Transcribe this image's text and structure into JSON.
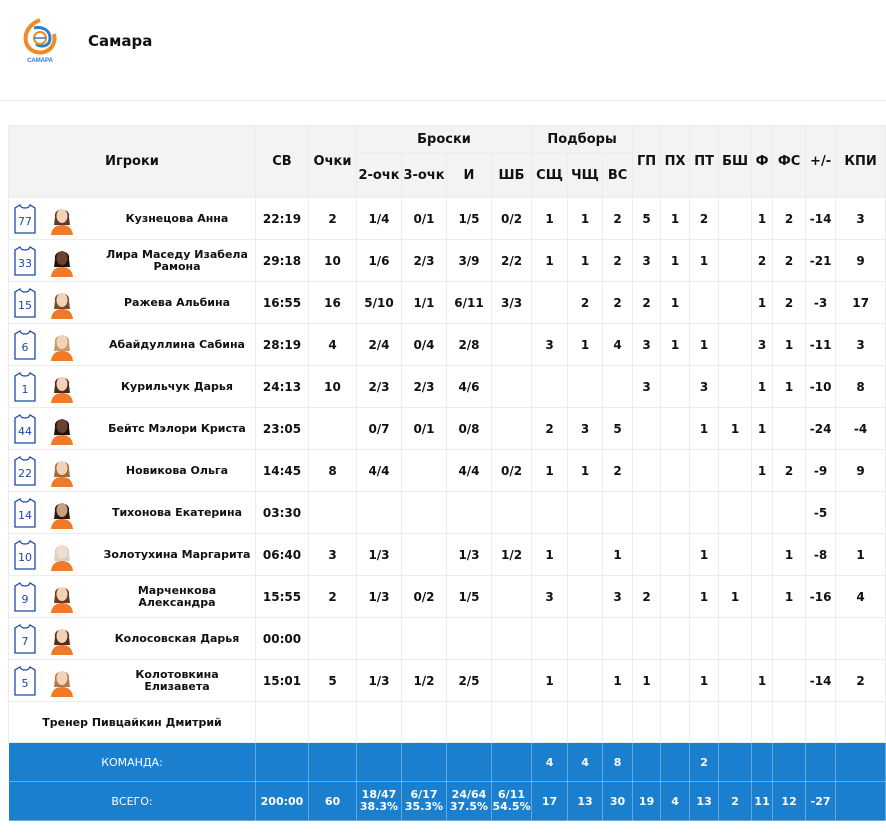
{
  "team": {
    "name": "Самара",
    "logo_text": "САМАРА"
  },
  "headers": {
    "players": "Игроки",
    "time": "СВ",
    "points": "Очки",
    "shots_group": "Броски",
    "two_pt": "2-очк",
    "three_pt": "3-очк",
    "total_shots": "И",
    "free_throws": "ШБ",
    "rebounds_group": "Подборы",
    "def_reb": "СЩ",
    "off_reb": "ЧЩ",
    "all_reb": "ВС",
    "assists": "ГП",
    "turnovers": "ПХ",
    "steals": "ПТ",
    "blocks": "БШ",
    "fouls": "Ф",
    "fouls_drawn": "ФС",
    "plus_minus": "+/-",
    "efficiency": "КПИ"
  },
  "players": [
    {
      "number": "77",
      "name": "Кузнецова Анна",
      "time": "22:19",
      "pts": "2",
      "p2": "1/4",
      "p3": "0/1",
      "pi": "1/5",
      "ft": "0/2",
      "dr": "1",
      "or": "1",
      "tr": "2",
      "as": "5",
      "to": "1",
      "st": "2",
      "bl": "",
      "f": "1",
      "fd": "2",
      "pm": "-14",
      "eff": "3",
      "skin": "light",
      "hair": "#5a3a2a"
    },
    {
      "number": "33",
      "name": "Лира Маседу Изабела Рамона",
      "time": "29:18",
      "pts": "10",
      "p2": "1/6",
      "p3": "2/3",
      "pi": "3/9",
      "ft": "2/2",
      "dr": "1",
      "or": "1",
      "tr": "2",
      "as": "3",
      "to": "1",
      "st": "1",
      "bl": "",
      "f": "2",
      "fd": "2",
      "pm": "-21",
      "eff": "9",
      "skin": "dark",
      "hair": "#1d1410"
    },
    {
      "number": "15",
      "name": "Ражева Альбина",
      "time": "16:55",
      "pts": "16",
      "p2": "5/10",
      "p3": "1/1",
      "pi": "6/11",
      "ft": "3/3",
      "dr": "",
      "or": "2",
      "tr": "2",
      "as": "2",
      "to": "1",
      "st": "",
      "bl": "",
      "f": "1",
      "fd": "2",
      "pm": "-3",
      "eff": "17",
      "skin": "light",
      "hair": "#7a4a2a"
    },
    {
      "number": "6",
      "name": "Абайдуллина Сабина",
      "time": "28:19",
      "pts": "4",
      "p2": "2/4",
      "p3": "0/4",
      "pi": "2/8",
      "ft": "",
      "dr": "3",
      "or": "1",
      "tr": "4",
      "as": "3",
      "to": "1",
      "st": "1",
      "bl": "",
      "f": "3",
      "fd": "1",
      "pm": "-11",
      "eff": "3",
      "skin": "light",
      "hair": "#c89a6a"
    },
    {
      "number": "1",
      "name": "Курильчук Дарья",
      "time": "24:13",
      "pts": "10",
      "p2": "2/3",
      "p3": "2/3",
      "pi": "4/6",
      "ft": "",
      "dr": "",
      "or": "",
      "tr": "",
      "as": "3",
      "to": "",
      "st": "3",
      "bl": "",
      "f": "1",
      "fd": "1",
      "pm": "-10",
      "eff": "8",
      "skin": "light",
      "hair": "#4a2a1a"
    },
    {
      "number": "44",
      "name": "Бейтс Мэлори Криста",
      "time": "23:05",
      "pts": "",
      "p2": "0/7",
      "p3": "0/1",
      "pi": "0/8",
      "ft": "",
      "dr": "2",
      "or": "3",
      "tr": "5",
      "as": "",
      "to": "",
      "st": "1",
      "bl": "1",
      "f": "1",
      "fd": "",
      "pm": "-24",
      "eff": "-4",
      "skin": "dark",
      "hair": "#1a1210"
    },
    {
      "number": "22",
      "name": "Новикова Ольга",
      "time": "14:45",
      "pts": "8",
      "p2": "4/4",
      "p3": "",
      "pi": "4/4",
      "ft": "0/2",
      "dr": "1",
      "or": "1",
      "tr": "2",
      "as": "",
      "to": "",
      "st": "",
      "bl": "",
      "f": "1",
      "fd": "2",
      "pm": "-9",
      "eff": "9",
      "skin": "light",
      "hair": "#a06a3a"
    },
    {
      "number": "14",
      "name": "Тихонова Екатерина",
      "time": "03:30",
      "pts": "",
      "p2": "",
      "p3": "",
      "pi": "",
      "ft": "",
      "dr": "",
      "or": "",
      "tr": "",
      "as": "",
      "to": "",
      "st": "",
      "bl": "",
      "f": "",
      "fd": "",
      "pm": "-5",
      "eff": "",
      "skin": "mid",
      "hair": "#2a1a12"
    },
    {
      "number": "10",
      "name": "Золотухина Маргарита",
      "time": "06:40",
      "pts": "3",
      "p2": "1/3",
      "p3": "",
      "pi": "1/3",
      "ft": "1/2",
      "dr": "1",
      "or": "",
      "tr": "1",
      "as": "",
      "to": "",
      "st": "1",
      "bl": "",
      "f": "",
      "fd": "1",
      "pm": "-8",
      "eff": "1",
      "skin": "pale",
      "hair": "#d8d0c4"
    },
    {
      "number": "9",
      "name": "Марченкова Александра",
      "time": "15:55",
      "pts": "2",
      "p2": "1/3",
      "p3": "0/2",
      "pi": "1/5",
      "ft": "",
      "dr": "3",
      "or": "",
      "tr": "3",
      "as": "2",
      "to": "",
      "st": "1",
      "bl": "1",
      "f": "",
      "fd": "1",
      "pm": "-16",
      "eff": "4",
      "skin": "light",
      "hair": "#6a3a24"
    },
    {
      "number": "7",
      "name": "Колосовская Дарья",
      "time": "00:00",
      "pts": "",
      "p2": "",
      "p3": "",
      "pi": "",
      "ft": "",
      "dr": "",
      "or": "",
      "tr": "",
      "as": "",
      "to": "",
      "st": "",
      "bl": "",
      "f": "",
      "fd": "",
      "pm": "",
      "eff": "",
      "skin": "light",
      "hair": "#5a2a1a"
    },
    {
      "number": "5",
      "name": "Колотовкина Елизавета",
      "time": "15:01",
      "pts": "5",
      "p2": "1/3",
      "p3": "1/2",
      "pi": "2/5",
      "ft": "",
      "dr": "1",
      "or": "",
      "tr": "1",
      "as": "1",
      "to": "",
      "st": "1",
      "bl": "",
      "f": "1",
      "fd": "",
      "pm": "-14",
      "eff": "2",
      "skin": "light",
      "hair": "#b07a4a"
    }
  ],
  "coach": "Тренер Пивцайкин Дмитрий",
  "team_row": {
    "label": "КОМАНДА:",
    "dr": "4",
    "or": "4",
    "tr": "8",
    "st": "2"
  },
  "total_row": {
    "label": "ВСЕГО:",
    "time": "200:00",
    "pts": "60",
    "p2_made": "18/47",
    "p2_pct": "38.3%",
    "p3_made": "6/17",
    "p3_pct": "35.3%",
    "pi_made": "24/64",
    "pi_pct": "37.5%",
    "ft_made": "6/11",
    "ft_pct": "54.5%",
    "dr": "17",
    "or": "13",
    "tr": "30",
    "as": "19",
    "to": "4",
    "st": "13",
    "bl": "2",
    "f": "11",
    "fd": "12",
    "pm": "-27",
    "eff": ""
  },
  "colors": {
    "accent_blue": "#1a7fce",
    "header_bg": "#f3f3f3",
    "number_blue": "#1b4aa6",
    "logo_orange": "#f08a24"
  }
}
